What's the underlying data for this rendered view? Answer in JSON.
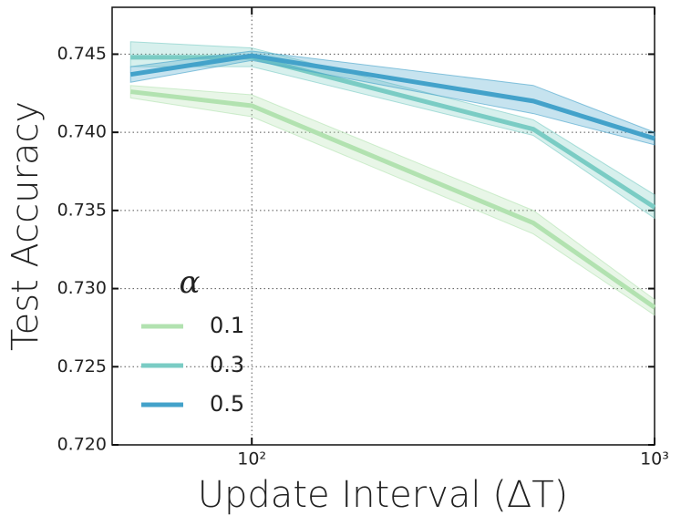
{
  "chart_data": {
    "type": "line",
    "xlabel": "Update Interval (ΔT)",
    "ylabel": "Test Accuracy",
    "x": [
      50,
      100,
      500,
      1000
    ],
    "xscale": "log",
    "xlim": [
      45,
      1000
    ],
    "xticks": [
      {
        "value": 100,
        "label": "10²"
      },
      {
        "value": 1000,
        "label": "10³"
      }
    ],
    "ylim": [
      0.72,
      0.748
    ],
    "yticks": [
      {
        "value": 0.72,
        "label": "0.720"
      },
      {
        "value": 0.725,
        "label": "0.725"
      },
      {
        "value": 0.73,
        "label": "0.730"
      },
      {
        "value": 0.735,
        "label": "0.735"
      },
      {
        "value": 0.74,
        "label": "0.740"
      },
      {
        "value": 0.745,
        "label": "0.745"
      }
    ],
    "grid": true,
    "legend_title": "α",
    "legend": "lower left",
    "series": [
      {
        "name": "0.1",
        "color": "#b2e2b0",
        "values": [
          0.7426,
          0.7417,
          0.7342,
          0.7288
        ],
        "lower": [
          0.7422,
          0.741,
          0.7335,
          0.7283
        ],
        "upper": [
          0.743,
          0.7424,
          0.735,
          0.7293
        ]
      },
      {
        "name": "0.3",
        "color": "#7accc4",
        "values": [
          0.7448,
          0.7448,
          0.7402,
          0.7352
        ],
        "lower": [
          0.7442,
          0.7442,
          0.7398,
          0.7345
        ],
        "upper": [
          0.7458,
          0.7454,
          0.7408,
          0.736
        ]
      },
      {
        "name": "0.5",
        "color": "#43a2ca",
        "values": [
          0.7437,
          0.7449,
          0.742,
          0.7396
        ],
        "lower": [
          0.7432,
          0.7446,
          0.7412,
          0.7392
        ],
        "upper": [
          0.7442,
          0.7452,
          0.743,
          0.74
        ]
      }
    ]
  }
}
